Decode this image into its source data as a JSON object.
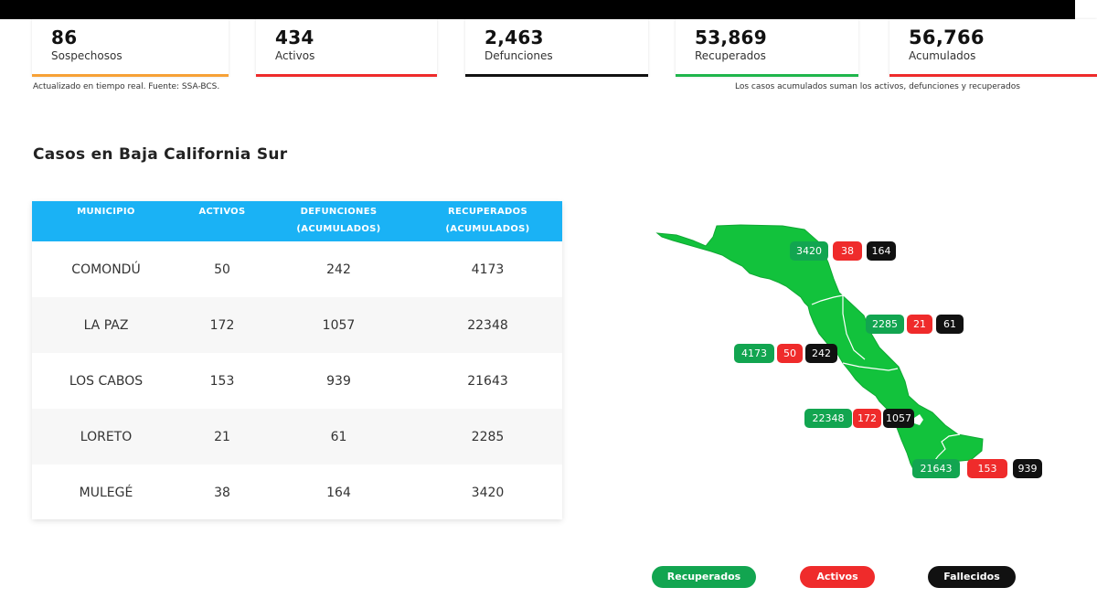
{
  "stats": [
    {
      "value": "86",
      "label": "Sospechosos"
    },
    {
      "value": "434",
      "label": "Activos"
    },
    {
      "value": "2,463",
      "label": "Defunciones"
    },
    {
      "value": "53,869",
      "label": "Recuperados"
    },
    {
      "value": "56,766",
      "label": "Acumulados"
    }
  ],
  "notes": {
    "left": "Actualizado en tiempo real. Fuente: SSA-BCS.",
    "right": "Los casos acumulados suman los activos, defunciones y recuperados"
  },
  "section_title": "Casos en Baja California Sur",
  "table": {
    "headers": [
      "MUNICIPIO",
      "ACTIVOS",
      "DEFUNCIONES (ACUMULADOS)",
      "RECUPERADOS (ACUMULADOS)"
    ],
    "rows": [
      {
        "municipio": "COMONDÚ",
        "activos": "50",
        "defunciones": "242",
        "recuperados": "4173"
      },
      {
        "municipio": "LA PAZ",
        "activos": "172",
        "defunciones": "1057",
        "recuperados": "22348"
      },
      {
        "municipio": "LOS CABOS",
        "activos": "153",
        "defunciones": "939",
        "recuperados": "21643"
      },
      {
        "municipio": "LORETO",
        "activos": "21",
        "defunciones": "61",
        "recuperados": "2285"
      },
      {
        "municipio": "MULEGÉ",
        "activos": "38",
        "defunciones": "164",
        "recuperados": "3420"
      }
    ]
  },
  "map_labels": {
    "mulege": {
      "recuperados": "3420",
      "activos": "38",
      "fallecidos": "164"
    },
    "loreto": {
      "recuperados": "2285",
      "activos": "21",
      "fallecidos": "61"
    },
    "comondu": {
      "recuperados": "4173",
      "activos": "50",
      "fallecidos": "242"
    },
    "la_paz": {
      "recuperados": "22348",
      "activos": "172",
      "fallecidos": "1057"
    },
    "los_cabos": {
      "recuperados": "21643",
      "activos": "153",
      "fallecidos": "939"
    }
  },
  "legend": {
    "recuperados": "Recuperados",
    "activos": "Activos",
    "fallecidos": "Fallecidos"
  },
  "colors": {
    "header_blue": "#1ab2f5",
    "map_green": "#12c23c",
    "recuperados": "#12a550",
    "activos": "#ef2b2b",
    "fallecidos": "#111111",
    "sospechosos_accent": "#f7a136"
  }
}
